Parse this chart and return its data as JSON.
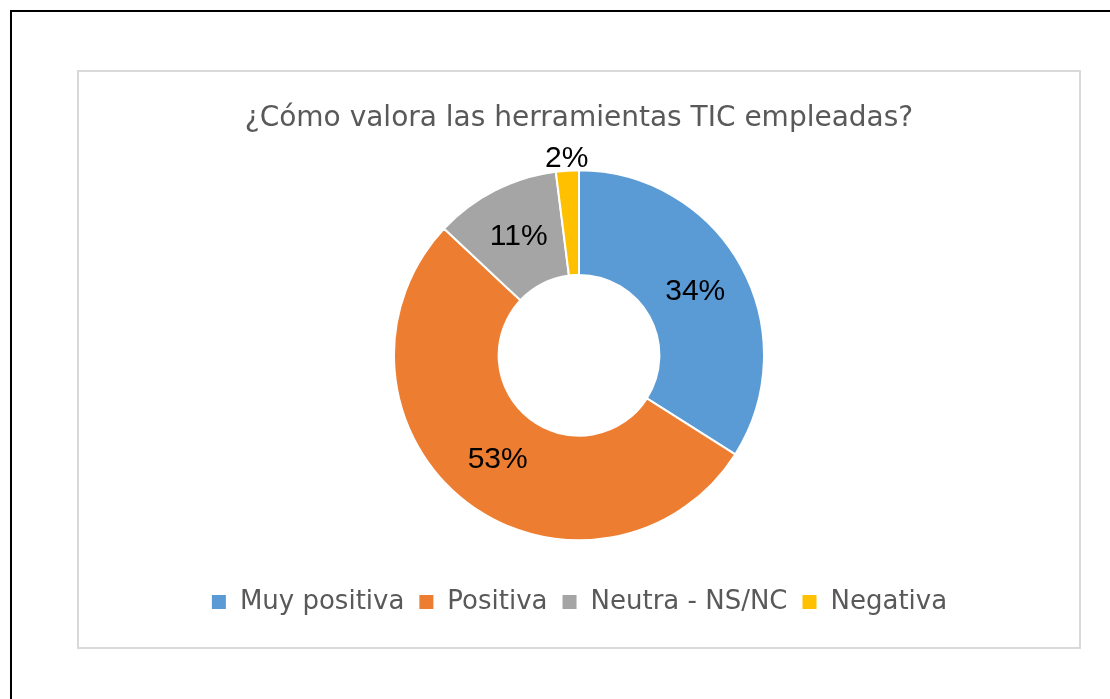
{
  "chart_data": {
    "type": "donut",
    "title": "¿Cómo valora las herramientas TIC empleadas?",
    "categories": [
      "Muy positiva",
      "Positiva",
      "Neutra - NS/NC",
      "Negativa"
    ],
    "values": [
      34,
      53,
      11,
      2
    ],
    "colors": [
      "#5b9bd5",
      "#ed7d31",
      "#a5a5a5",
      "#ffc000"
    ],
    "value_labels": [
      "34%",
      "53%",
      "11%",
      "2%"
    ],
    "legend": "bottom"
  }
}
